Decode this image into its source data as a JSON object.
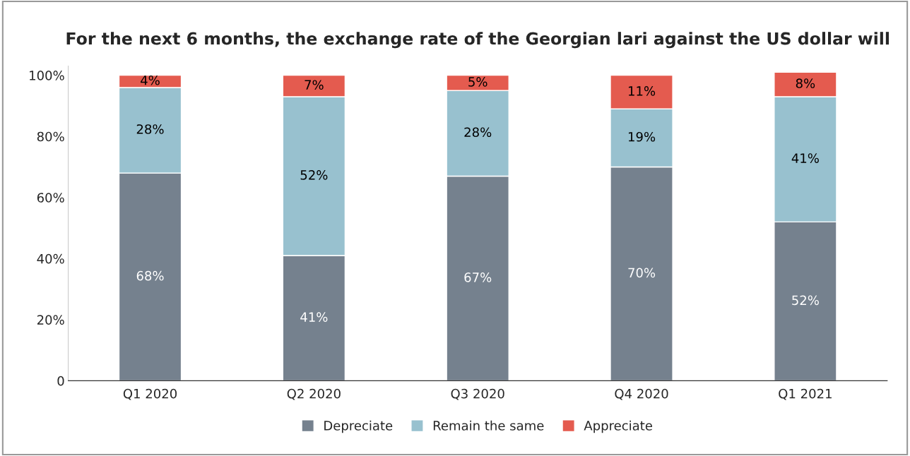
{
  "chart_data": {
    "type": "bar",
    "title": "For the next 6 months, the exchange rate of the Georgian lari against the US dollar will",
    "categories": [
      "Q1 2020",
      "Q2 2020",
      "Q3 2020",
      "Q4 2020",
      "Q1 2021"
    ],
    "stacked": true,
    "series": [
      {
        "name": "Depreciate",
        "color": "#75818e",
        "values": [
          68,
          41,
          67,
          70,
          52
        ],
        "value_labels": [
          "68%",
          "41%",
          "67%",
          "70%",
          "52%"
        ]
      },
      {
        "name": "Remain the same",
        "color": "#98c1cf",
        "values": [
          28,
          52,
          28,
          19,
          41
        ],
        "value_labels": [
          "28%",
          "52%",
          "28%",
          "19%",
          "41%"
        ]
      },
      {
        "name": "Appreciate",
        "color": "#e45b4f",
        "values": [
          4,
          7,
          5,
          11,
          8
        ],
        "value_labels": [
          "4%",
          "7%",
          "5%",
          "11%",
          "8%"
        ]
      }
    ],
    "ylim": [
      0,
      103
    ],
    "yticks": [
      {
        "value": 0,
        "label": "0"
      },
      {
        "value": 20,
        "label": "20%"
      },
      {
        "value": 40,
        "label": "40%"
      },
      {
        "value": 60,
        "label": "60%"
      },
      {
        "value": 80,
        "label": "80%"
      },
      {
        "value": 100,
        "label": "100%"
      }
    ],
    "grid": false,
    "legend": "bottom"
  }
}
